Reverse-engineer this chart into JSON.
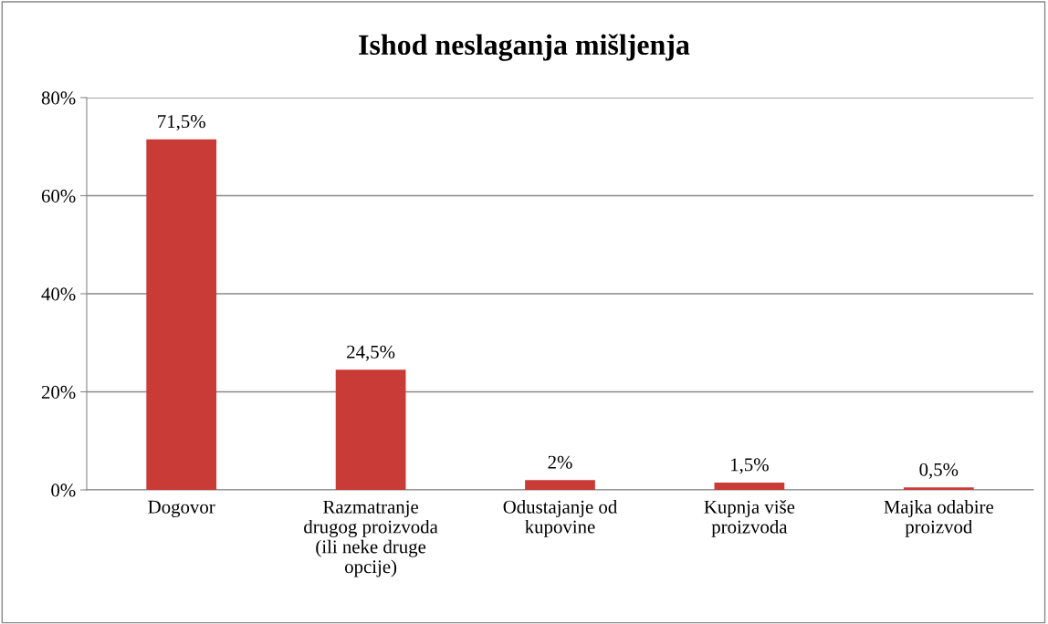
{
  "chart_data": {
    "type": "bar",
    "title": "Ishod neslaganja mišljenja",
    "categories": [
      "Dogovor",
      "Razmatranje\ndrugog proizvoda\n(ili neke druge\nopcije)",
      "Odustajanje od\nkupovine",
      "Kupnja više\nproizvoda",
      "Majka odabire\nproizvod"
    ],
    "values": [
      71.5,
      24.5,
      2,
      1.5,
      0.5
    ],
    "value_labels": [
      "71,5%",
      "24,5%",
      "2%",
      "1,5%",
      "0,5%"
    ],
    "color": "#c93b37",
    "ylim": [
      0,
      80
    ],
    "yticks": [
      {
        "value": 0,
        "label": "0%"
      },
      {
        "value": 20,
        "label": "20%"
      },
      {
        "value": 40,
        "label": "40%"
      },
      {
        "value": 60,
        "label": "60%"
      },
      {
        "value": 80,
        "label": "80%"
      }
    ],
    "grid": "y"
  }
}
